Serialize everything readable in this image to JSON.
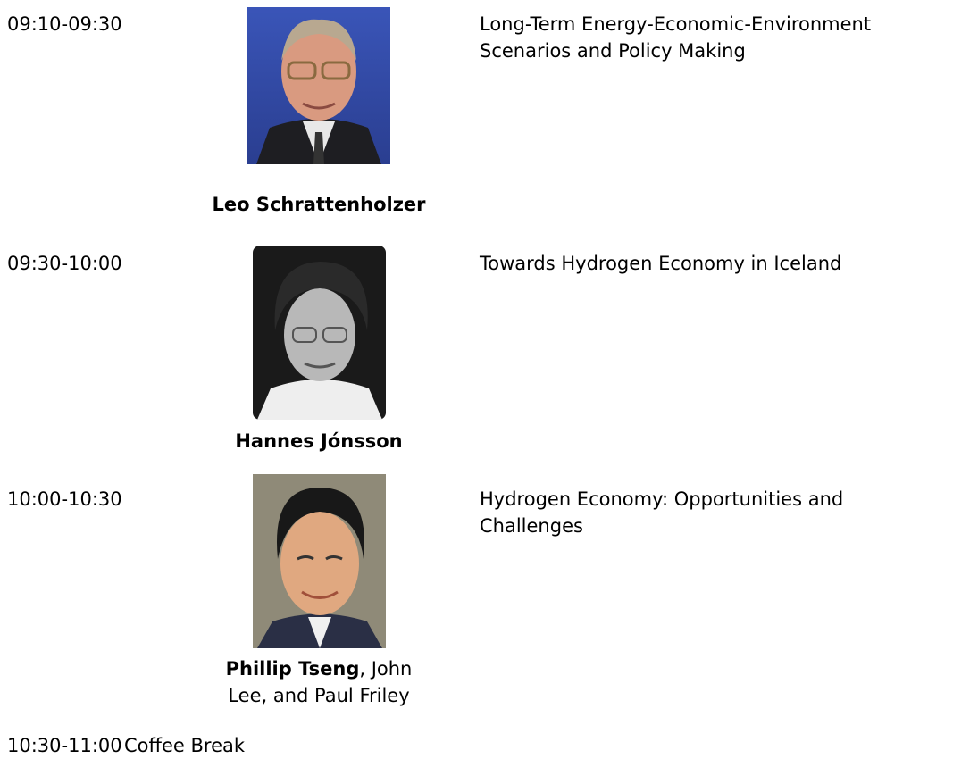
{
  "schedule": [
    {
      "time": "09:10-09:30",
      "speaker": {
        "bold": "Leo Schrattenholzer"
      },
      "title": "Long-Term Energy-Economic-Environment Scenarios and Policy Making"
    },
    {
      "time": "09:30-10:00",
      "speaker": {
        "bold": "Hannes Jónsson"
      },
      "title": "Towards Hydrogen Economy in Iceland"
    },
    {
      "time": "10:00-10:30",
      "speaker": {
        "bold": "Phillip Tseng",
        "rest": ", John Lee, and Paul Friley"
      },
      "title": "Hydrogen Economy: Opportunities and Challenges"
    }
  ],
  "break": {
    "time": "10:30-11:00",
    "label": "Coffee Break"
  }
}
